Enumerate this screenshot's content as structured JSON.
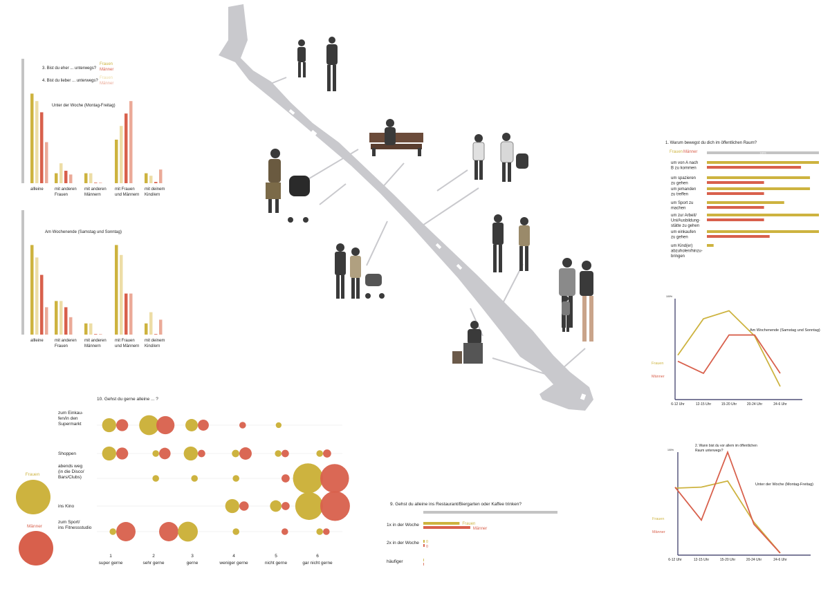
{
  "colors": {
    "frauen": "#CDB33F",
    "maenner": "#D8604C",
    "frauen_light": "#EDDDA6",
    "maenner_light": "#EBAA98",
    "grey": "#C4C4C4",
    "axis": "#2E2E5E",
    "street": "#C9C9CD"
  },
  "legend_top": {
    "q3": "3. Bist du eher ... unterwegs?",
    "q4": "4. Bist du lieber ... unterwegs?",
    "frauen": "Frauen",
    "maenner": "Männer"
  },
  "chart_data": [
    {
      "id": "woche",
      "type": "bar",
      "title": "Unter der Woche (Montag-Freitag)",
      "categories": [
        "allleine",
        "mit anderen Frauen",
        "mit anderen Männern",
        "mit Frauen und Männern",
        "mit deinem Kind/ern"
      ],
      "series": [
        {
          "name": "Frauen",
          "values": [
            72,
            8,
            8,
            35,
            8
          ]
        },
        {
          "name": "Frauen",
          "values": [
            66,
            16,
            8,
            46,
            6
          ]
        },
        {
          "name": "Männer",
          "values": [
            57,
            10,
            0,
            56,
            1
          ]
        },
        {
          "name": "Männer",
          "values": [
            33,
            7,
            0,
            66,
            11
          ]
        }
      ],
      "total_value": 100
    },
    {
      "id": "wochenende",
      "type": "bar",
      "title": "Am Wochenende (Samstag und Sonntag)",
      "categories": [
        "allleine",
        "mit anderen Frauen",
        "mit anderen Männern",
        "mit Frauen und Männern",
        "mit deinem Kind/ern"
      ],
      "series": [
        {
          "name": "Frauen",
          "values": [
            72,
            27,
            9,
            72,
            9
          ]
        },
        {
          "name": "Frauen",
          "values": [
            62,
            27,
            9,
            64,
            18
          ]
        },
        {
          "name": "Männer",
          "values": [
            48,
            22,
            0,
            33,
            0
          ]
        },
        {
          "name": "Männer",
          "values": [
            22,
            14,
            0,
            33,
            12
          ]
        }
      ],
      "total_value": 100
    },
    {
      "id": "warum",
      "type": "bar",
      "title": "1. Warum bewegst du dich im öffentlichen Raum?",
      "legend": [
        "Frauen",
        "Männer"
      ],
      "total_label": "100%",
      "categories": [
        "um von A nach B zu kommen",
        "um spazieren zu gehen",
        "um jemanden zu treffen",
        "um Sport zu machen",
        "um zur Arbeit/ Uni/Ausbildungs- stätte zu gehen",
        "um einkaufen zu gehen",
        "um Kind(er) abzuholen/hinzu- bringen"
      ],
      "category_lines": [
        [
          "um von A nach",
          "B zu kommen"
        ],
        [
          "um spazieren",
          "zu gehen"
        ],
        [
          "um jemanden",
          "zu treffen"
        ],
        [
          "um Sport zu",
          "machen"
        ],
        [
          "um zur Arbeit/",
          "Uni/Ausbildung-",
          "stätte zu gehen"
        ],
        [
          "um einkaufen",
          "zu gehen"
        ],
        [
          "um Kind(er)",
          "abzuholen/hinzu-",
          "bringen"
        ]
      ],
      "series": [
        {
          "name": "Frauen",
          "values": [
            100,
            92,
            92,
            69,
            100,
            100,
            6
          ]
        },
        {
          "name": "Männer",
          "values": [
            84,
            51,
            51,
            51,
            51,
            56,
            0
          ]
        }
      ]
    },
    {
      "id": "wochenende_line",
      "type": "line",
      "title": "Am Wochenende (Samstag und Sonntag)",
      "y_max_label": "100%",
      "x": [
        "6-12 Uhr",
        "12-15 Uhr",
        "15-20 Uhr",
        "20-24 Uhr",
        "24-6 Uhr"
      ],
      "series": [
        {
          "name": "Frauen",
          "values": [
            44,
            80,
            88,
            63,
            13
          ]
        },
        {
          "name": "Männer",
          "values": [
            38,
            26,
            64,
            64,
            26
          ]
        }
      ]
    },
    {
      "id": "woche_line",
      "type": "line",
      "title": "2. Wann bist du vor allem im öffentlichen Raum unterwegs?",
      "subtitle": "Unter der Woche (Montag-Freitag)",
      "y_max_label": "100%",
      "x": [
        "6-12 Uhr",
        "12-15 Uhr",
        "15-20 Uhr",
        "20-24 Uhr",
        "24-6 Uhr"
      ],
      "series": [
        {
          "name": "Frauen",
          "values": [
            65,
            66,
            72,
            32,
            2
          ]
        },
        {
          "name": "Männer",
          "values": [
            66,
            34,
            100,
            30,
            2
          ]
        }
      ]
    },
    {
      "id": "alleine",
      "type": "scatter",
      "title": "10. Gehst du gerne alleine ... ?",
      "rows": [
        "zum Einkaufen/in den Supermarkt",
        "Shoppen",
        "abends weg (in die Disco/ Bars/Clubs)",
        "ins Kino",
        "zum Sport/ ins Fitnessstudio"
      ],
      "row_lines": [
        [
          "zum Einkau-",
          "fen/in den",
          "Supermarkt"
        ],
        [
          "Shoppen"
        ],
        [
          "abends weg",
          "(in die Disco/",
          "Bars/Clubs)"
        ],
        [
          "ins Kino"
        ],
        [
          "zum Sport/",
          "ins Fitnessstudio"
        ]
      ],
      "columns": [
        {
          "number": "1",
          "label": "super gerne"
        },
        {
          "number": "2",
          "label": "sehr gerne"
        },
        {
          "number": "3",
          "label": "gerne"
        },
        {
          "number": "4",
          "label": "weniger gerne"
        },
        {
          "number": "5",
          "label": "nicht gerne"
        },
        {
          "number": "6",
          "label": "gar nicht gerne"
        }
      ],
      "frauen": [
        [
          18,
          36,
          14,
          0,
          3,
          0
        ],
        [
          18,
          4,
          18,
          5,
          4,
          4
        ],
        [
          0,
          4,
          4,
          4,
          0,
          82
        ],
        [
          0,
          0,
          0,
          18,
          12,
          70
        ],
        [
          4,
          0,
          36,
          4,
          0,
          4
        ]
      ],
      "maenner": [
        [
          13,
          30,
          11,
          4,
          0,
          0
        ],
        [
          13,
          12,
          5,
          14,
          5,
          6
        ],
        [
          0,
          0,
          0,
          0,
          6,
          75
        ],
        [
          0,
          0,
          0,
          8,
          6,
          80
        ],
        [
          34,
          34,
          0,
          0,
          4,
          4
        ]
      ],
      "legend": [
        "Frauen",
        "Männer"
      ]
    },
    {
      "id": "restaurant",
      "type": "bar",
      "title": "9. Gehst du alleine ins Restaurant/Biergarten oder Kaffee trinken?",
      "categories": [
        "1x in der Woche",
        "2x in der Woche",
        "häufiger"
      ],
      "series": [
        {
          "name": "Frauen",
          "values": [
            27,
            1,
            0
          ]
        },
        {
          "name": "Männer",
          "values": [
            35,
            1,
            0
          ]
        }
      ],
      "total_value": 100
    }
  ]
}
